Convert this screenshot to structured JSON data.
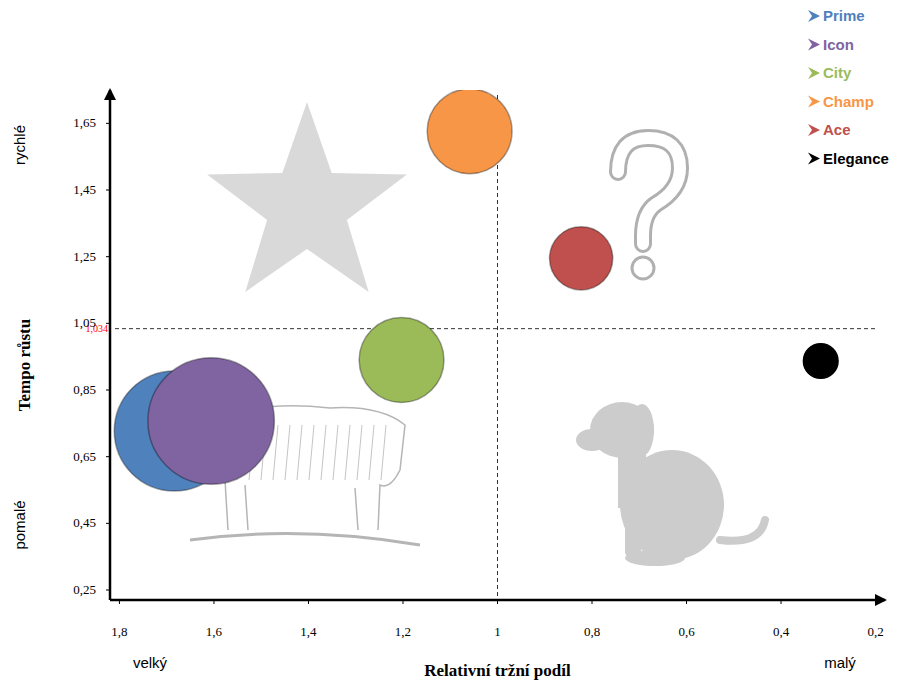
{
  "chart_data": {
    "type": "bubble",
    "x_label": "Relativní tržní podíl",
    "y_label": "Tempo růstu",
    "x_end_labels": [
      "velký",
      "malý"
    ],
    "y_end_labels": [
      "pomalé",
      "rychlé"
    ],
    "xlim": [
      1.82,
      0.18
    ],
    "ylim": [
      0.22,
      1.75
    ],
    "xticks": [
      {
        "value": 1.8,
        "label": "1,8"
      },
      {
        "value": 1.6,
        "label": "1,6"
      },
      {
        "value": 1.4,
        "label": "1,4"
      },
      {
        "value": 1.2,
        "label": "1,2"
      },
      1,
      {
        "value": 0.8,
        "label": "0,8"
      },
      {
        "value": 0.6,
        "label": "0,6"
      },
      {
        "value": 0.4,
        "label": "0,4"
      },
      {
        "value": 0.2,
        "label": "0,2"
      }
    ],
    "yticks": [
      {
        "value": 0.25,
        "label": "0,25"
      },
      {
        "value": 0.45,
        "label": "0,45"
      },
      {
        "value": 0.65,
        "label": "0,65"
      },
      {
        "value": 0.85,
        "label": "0,85"
      },
      {
        "value": 1.05,
        "label": "1,05"
      },
      {
        "value": 1.25,
        "label": "1,25"
      },
      {
        "value": 1.45,
        "label": "1,45"
      },
      {
        "value": 1.65,
        "label": "1,65"
      }
    ],
    "grid": false,
    "legend": "top-right",
    "reference_lines": [
      {
        "axis": "x",
        "value": 1
      },
      {
        "axis": "y",
        "value": 1.034,
        "label": "1,034",
        "color": "#ff0000"
      }
    ],
    "series": [
      {
        "name": "Prime",
        "color": "#4f81bd",
        "x": [
          1.684
        ],
        "values": [
          0.727
        ],
        "sizes": [
          36
        ]
      },
      {
        "name": "Icon",
        "color": "#8064a2",
        "x": [
          1.606
        ],
        "values": [
          0.757
        ],
        "sizes": [
          40
        ]
      },
      {
        "name": "City",
        "color": "#9bbb59",
        "x": [
          1.203
        ],
        "values": [
          0.94
        ],
        "sizes": [
          18
        ]
      },
      {
        "name": "Champ",
        "color": "#f79646",
        "x": [
          1.059
        ],
        "values": [
          1.626
        ],
        "sizes": [
          18
        ]
      },
      {
        "name": "Ace",
        "color": "#c0504d",
        "x": [
          0.823
        ],
        "values": [
          1.245
        ],
        "sizes": [
          10
        ]
      },
      {
        "name": "Elegance",
        "color": "#000000",
        "x": [
          0.316
        ],
        "values": [
          0.937
        ],
        "sizes": [
          3
        ]
      }
    ]
  }
}
